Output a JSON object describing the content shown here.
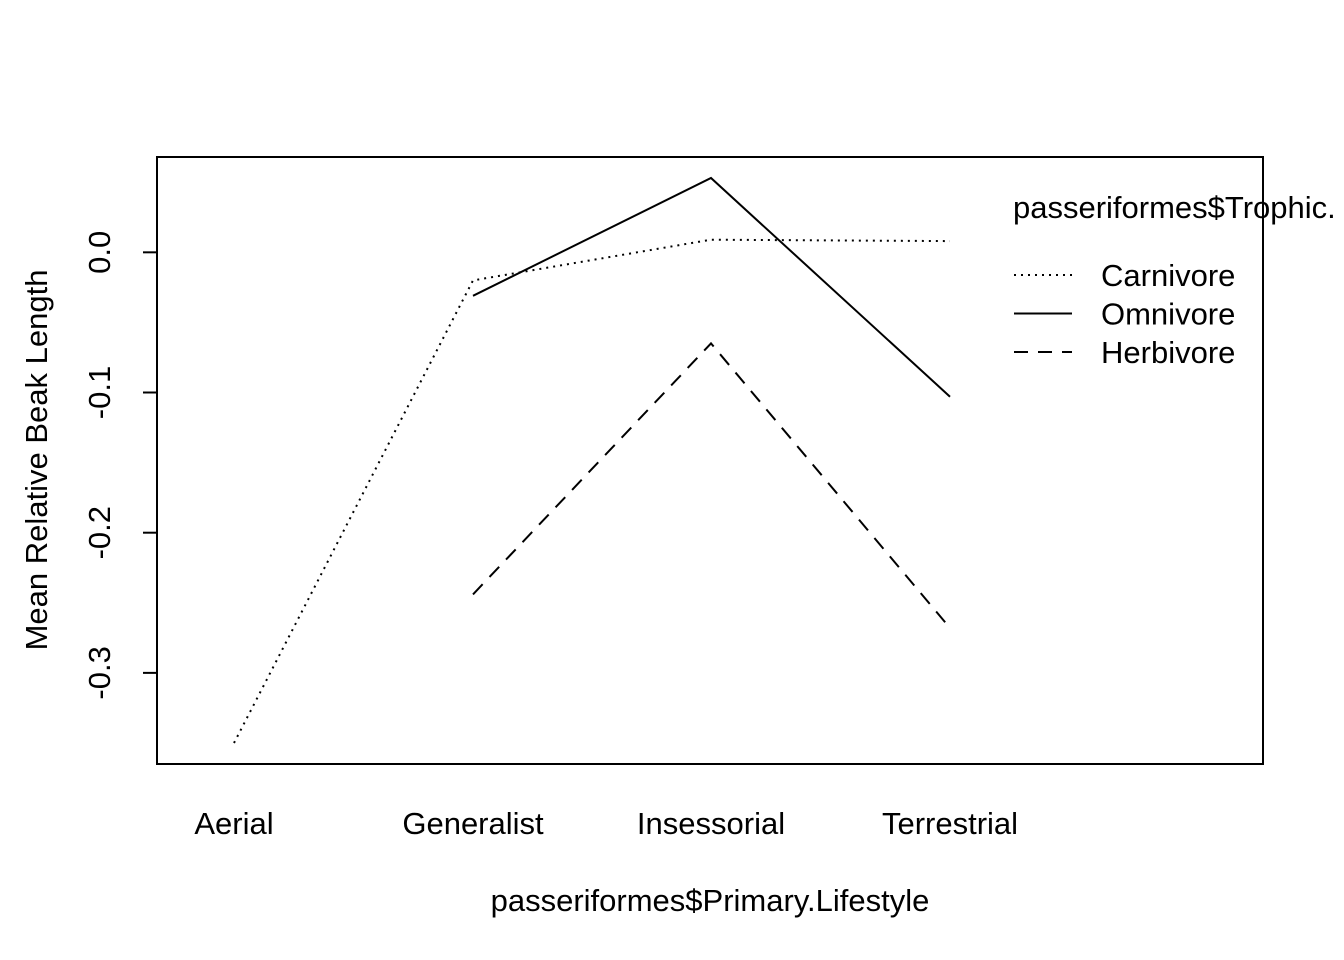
{
  "chart_data": {
    "type": "line",
    "xlabel": "passeriformes$Primary.Lifestyle",
    "ylabel": "Mean Relative Beak Length",
    "categories": [
      "Aerial",
      "Generalist",
      "Insessorial",
      "Terrestrial"
    ],
    "y_ticks": [
      "0.0",
      "-0.1",
      "-0.2",
      "-0.3"
    ],
    "ylim": [
      -0.365,
      0.068
    ],
    "grid": false,
    "legend": {
      "title": "passeriformes$Trophic.",
      "placement": "top-right"
    },
    "series": [
      {
        "name": "Carnivore",
        "line_style": "dotted",
        "values": [
          -0.35,
          -0.02,
          0.009,
          0.008
        ]
      },
      {
        "name": "Omnivore",
        "line_style": "solid",
        "values": [
          null,
          -0.031,
          0.053,
          -0.103
        ]
      },
      {
        "name": "Herbivore",
        "line_style": "dashed",
        "values": [
          null,
          -0.244,
          -0.065,
          -0.268
        ]
      }
    ],
    "colors": {
      "line": "#000000",
      "background": "#ffffff"
    }
  }
}
